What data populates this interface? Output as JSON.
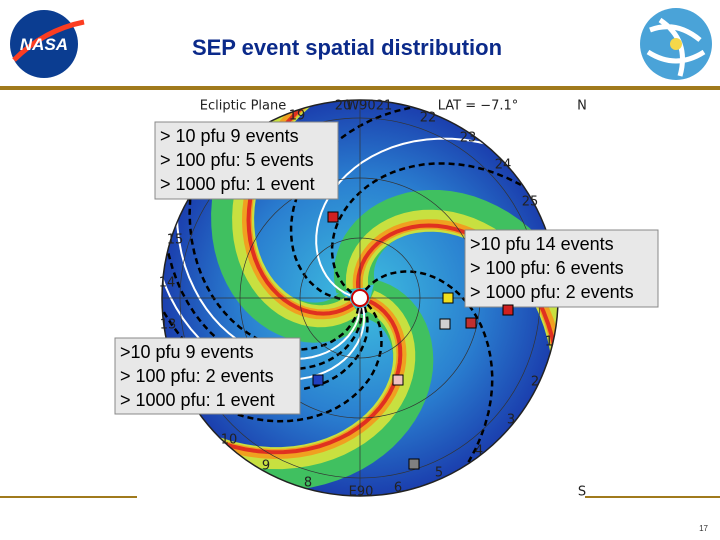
{
  "header": {
    "title": "SEP event spatial distribution",
    "logo": "NASA"
  },
  "figure": {
    "labels": [
      "Ecliptic Plane",
      "19",
      "20",
      "W90",
      "21",
      "LAT = −7.1°",
      "N",
      "22",
      "23",
      "24",
      "25",
      "15",
      "14",
      "13",
      "1",
      "2",
      "3",
      "4",
      "5",
      "6",
      "E90",
      "8",
      "9",
      "10",
      "S"
    ]
  },
  "boxes": [
    {
      "lines": [
        "> 10 pfu  9 events",
        "> 100 pfu: 5 events",
        "> 1000 pfu: 1 event"
      ]
    },
    {
      "lines": [
        ">10 pfu  14 events",
        "> 100 pfu: 6 events",
        "> 1000 pfu: 2 events"
      ]
    },
    {
      "lines": [
        ">10 pfu  9 events",
        "> 100 pfu: 2 events",
        "> 1000 pfu: 1 event"
      ]
    }
  ],
  "footer": {
    "page": "17"
  }
}
